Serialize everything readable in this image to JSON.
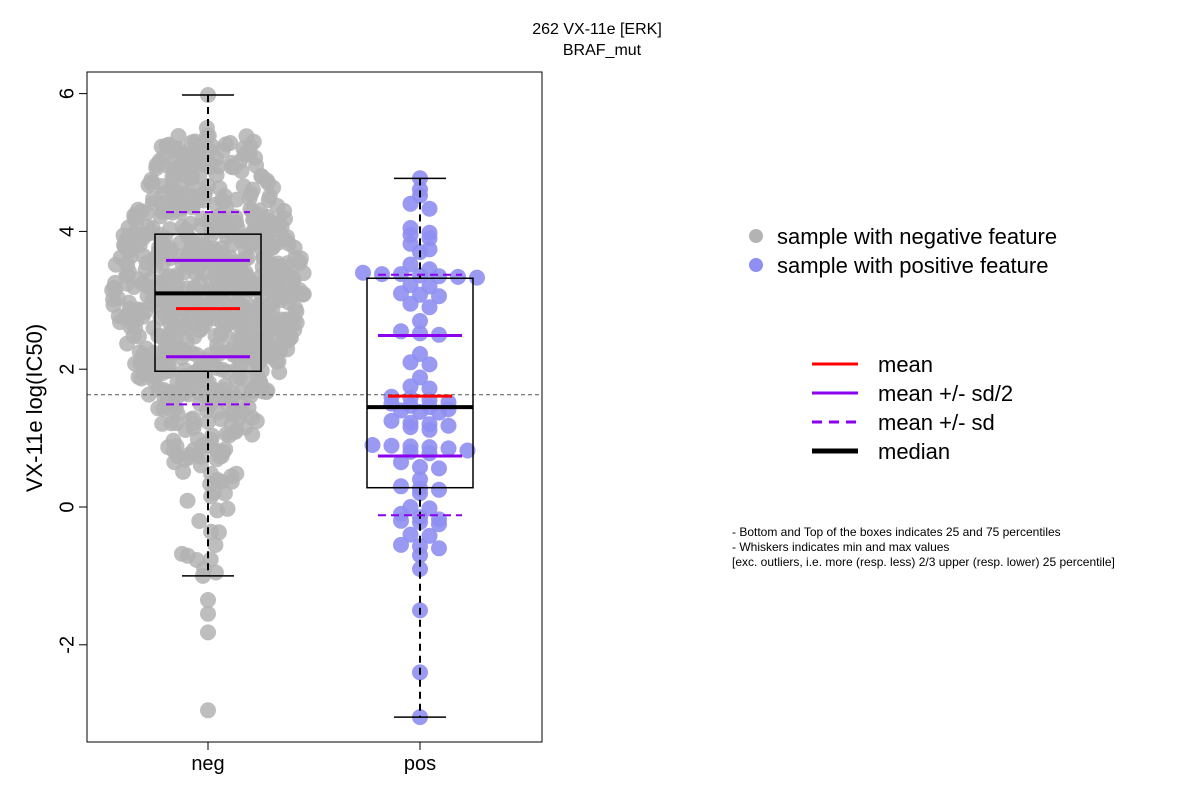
{
  "chart_data": {
    "type": "box-jitter",
    "title_line1": "262 VX-11e [ERK]",
    "title_line2": "BRAF_mut",
    "ylabel": "VX-11e log(IC50)",
    "xlabel": "",
    "ylim": [
      -3.4,
      6.3
    ],
    "yticks": [
      -2,
      0,
      2,
      4,
      6
    ],
    "reference_line_y": 1.63,
    "grid": false,
    "categories": [
      "neg",
      "pos"
    ],
    "colors": {
      "neg_points": "#b3b3b3",
      "pos_points": "#8f8ff2",
      "mean": "#ff0000",
      "sd": "#8b00ee",
      "median": "#000000",
      "refline": "#555555"
    },
    "groups": [
      {
        "name": "neg",
        "whisker_min": -1.0,
        "q1": 1.97,
        "median": 3.1,
        "q3": 3.96,
        "whisker_max": 5.98,
        "mean": 2.88,
        "mean_plus_half_sd": 3.58,
        "mean_minus_half_sd": 2.18,
        "mean_plus_sd": 4.28,
        "mean_minus_sd": 1.49,
        "outliers": [
          -1.35,
          -1.55,
          -1.82,
          -2.95
        ],
        "n_points": 780
      },
      {
        "name": "pos",
        "whisker_min": -3.05,
        "q1": 0.28,
        "median": 1.45,
        "q3": 3.32,
        "whisker_max": 4.77,
        "mean": 1.61,
        "mean_plus_half_sd": 2.49,
        "mean_minus_half_sd": 0.74,
        "mean_plus_sd": 3.37,
        "mean_minus_sd": -0.12,
        "points": [
          4.77,
          4.61,
          4.52,
          4.4,
          4.33,
          4.05,
          3.98,
          3.95,
          3.9,
          3.82,
          3.74,
          3.7,
          3.52,
          3.45,
          3.4,
          3.38,
          3.38,
          3.36,
          3.35,
          3.34,
          3.33,
          3.22,
          3.2,
          3.1,
          3.08,
          3.06,
          2.95,
          2.9,
          2.7,
          2.55,
          2.52,
          2.5,
          2.22,
          2.1,
          2.07,
          1.88,
          1.75,
          1.72,
          1.6,
          1.58,
          1.55,
          1.52,
          1.5,
          1.47,
          1.45,
          1.42,
          1.4,
          1.38,
          1.37,
          1.25,
          1.22,
          1.2,
          1.18,
          1.16,
          1.12,
          0.9,
          0.89,
          0.88,
          0.87,
          0.85,
          0.82,
          0.8,
          0.78,
          0.65,
          0.58,
          0.56,
          0.4,
          0.3,
          0.27,
          0.25,
          0.2,
          0.0,
          -0.02,
          -0.1,
          -0.15,
          -0.18,
          -0.2,
          -0.22,
          -0.25,
          -0.4,
          -0.42,
          -0.55,
          -0.57,
          -0.6,
          -0.7,
          -0.9,
          -1.5,
          -2.4,
          -3.05
        ]
      }
    ],
    "legend_points": [
      {
        "label": "sample with negative feature",
        "color": "#b3b3b3"
      },
      {
        "label": "sample with positive feature",
        "color": "#8f8ff2"
      }
    ],
    "legend_lines": [
      {
        "label": "mean",
        "color": "#ff0000",
        "style": "solid",
        "width": 3
      },
      {
        "label": "mean +/- sd/2",
        "color": "#8b00ee",
        "style": "solid",
        "width": 3
      },
      {
        "label": "mean +/- sd",
        "color": "#8b00ee",
        "style": "dashed",
        "width": 3
      },
      {
        "label": "median",
        "color": "#000000",
        "style": "solid",
        "width": 5
      }
    ],
    "notes": [
      "- Bottom and Top of the boxes indicates 25 and 75 percentiles",
      "- Whiskers indicates min and max values",
      "[exc. outliers, i.e. more (resp. less) 2/3 upper (resp. lower) 25 percentile]"
    ]
  }
}
